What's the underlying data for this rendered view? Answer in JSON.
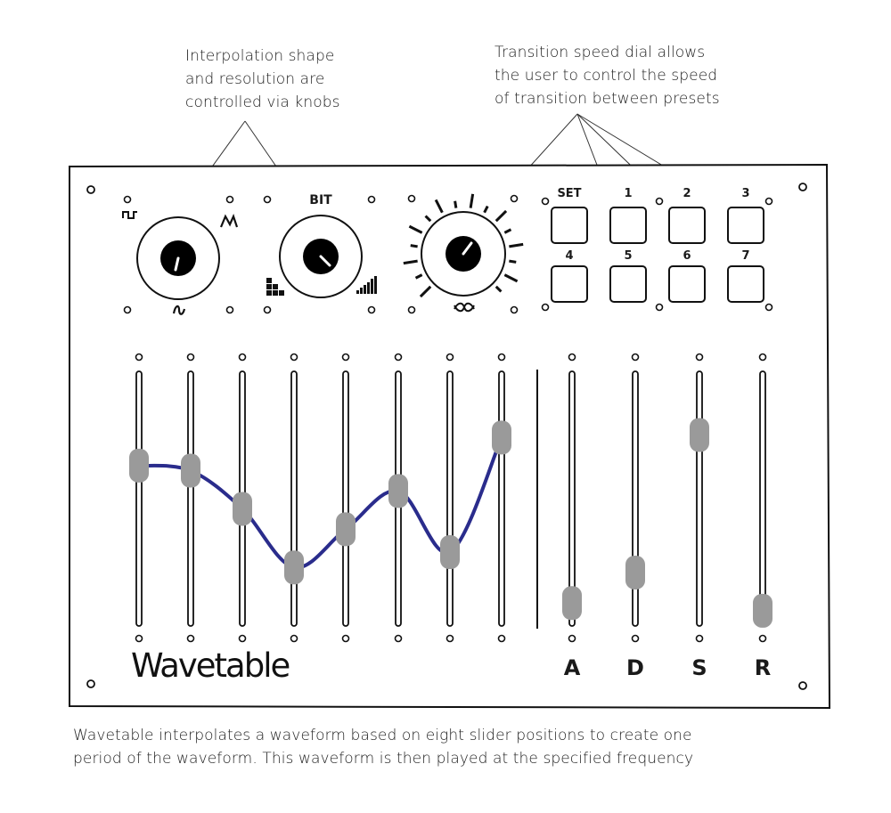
{
  "annotations": {
    "knobs": [
      "Interpolation shape",
      "and resolution are",
      "controlled via knobs"
    ],
    "dial": [
      "Transition speed dial allows",
      "the user to control the speed",
      "of transition between presets"
    ]
  },
  "caption": [
    "Wavetable interpolates a waveform based on eight slider positions to create one",
    "period of the waveform. This waveform is then played at the specified frequency"
  ],
  "panel": {
    "logo": "Wavetable",
    "knob_bit_label": "BIT",
    "preset_buttons": [
      "SET",
      "1",
      "2",
      "3",
      "4",
      "5",
      "6",
      "7"
    ],
    "adsr_labels": [
      "A",
      "D",
      "S",
      "R"
    ]
  },
  "wave_sliders": {
    "levels": [
      0.63,
      0.61,
      0.46,
      0.23,
      0.38,
      0.53,
      0.29,
      0.74
    ],
    "curve_color": "#2a2c8c"
  },
  "adsr_sliders": {
    "levels": [
      0.09,
      0.21,
      0.75,
      0.06
    ]
  },
  "colors": {
    "slider_handle": "#9a9a9a",
    "panel_border": "#111111",
    "knob_center": "#000000"
  }
}
